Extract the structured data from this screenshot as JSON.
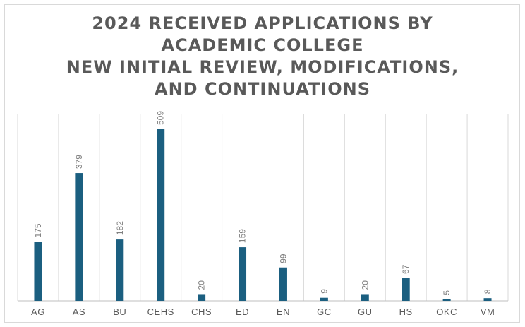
{
  "chart_data": {
    "type": "bar",
    "title_lines": [
      "2024 RECEIVED APPLICATIONS BY",
      "ACADEMIC COLLEGE",
      "NEW INITIAL REVIEW, MODIFICATIONS,",
      "AND CONTINUATIONS"
    ],
    "categories": [
      "AG",
      "AS",
      "BU",
      "CEHS",
      "CHS",
      "ED",
      "EN",
      "GC",
      "GU",
      "HS",
      "OKC",
      "VM"
    ],
    "values": [
      175,
      379,
      182,
      509,
      20,
      159,
      99,
      9,
      20,
      67,
      5,
      8
    ],
    "data_labels": [
      "175",
      "379",
      "182",
      "509",
      "20",
      "159",
      "99",
      "9",
      "20",
      "67",
      "5",
      "8"
    ],
    "ylim": [
      0,
      560
    ],
    "grid": "vertical category separators",
    "legend": "none",
    "colors": {
      "bar": "#1b5f80",
      "title": "#595959",
      "gridline": "#d9d9d9",
      "axis": "#bfbfbf"
    }
  }
}
